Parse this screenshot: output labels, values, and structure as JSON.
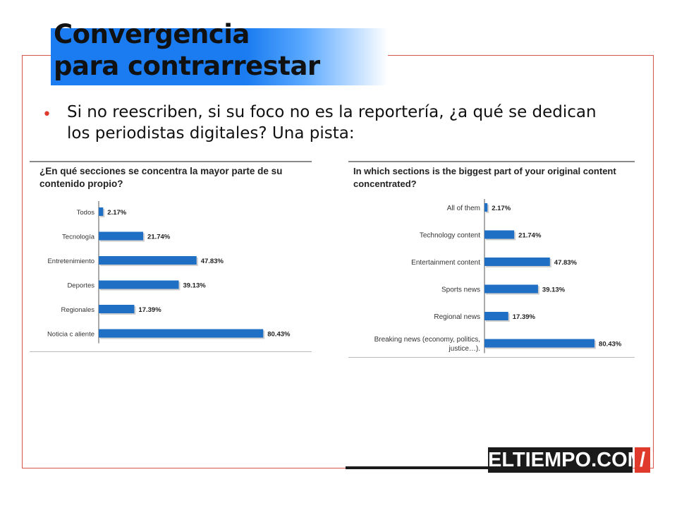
{
  "slide": {
    "title_line1": "Convergencia",
    "title_line2": "para contrarrestar",
    "bullet": "Si no reescriben, si su foco no es la reportería, ¿a qué se dedican los periodistas digitales? Una pista:"
  },
  "logo": {
    "text": "ELTIEMPO.COM",
    "slash": "/"
  },
  "colors": {
    "bar": "#1f6fc4",
    "title_bar": "#1a7cf0",
    "frame": "#d9544c",
    "bullet": "#e03a2c"
  },
  "chart_data": [
    {
      "type": "bar",
      "orientation": "horizontal",
      "title": "¿En qué secciones se concentra la mayor parte de su contenido propio?",
      "categories": [
        "Todos",
        "Tecnología",
        "Entretenimiento",
        "Deportes",
        "Regionales",
        "Noticia c aliente"
      ],
      "values": [
        2.17,
        21.74,
        47.83,
        39.13,
        17.39,
        80.43
      ],
      "value_labels": [
        "2.17%",
        "21.74%",
        "47.83%",
        "39.13%",
        "17.39%",
        "80.43%"
      ],
      "xlim": [
        0,
        100
      ]
    },
    {
      "type": "bar",
      "orientation": "horizontal",
      "title": "In which sections is the biggest part of your original content concentrated?",
      "categories": [
        "All of them",
        "Technology content",
        "Entertainment content",
        "Sports news",
        "Regional news",
        "Breaking news (economy, politics, justice…)."
      ],
      "values": [
        2.17,
        21.74,
        47.83,
        39.13,
        17.39,
        80.43
      ],
      "value_labels": [
        "2.17%",
        "21.74%",
        "47.83%",
        "39.13%",
        "17.39%",
        "80.43%"
      ],
      "xlim": [
        0,
        100
      ]
    }
  ]
}
